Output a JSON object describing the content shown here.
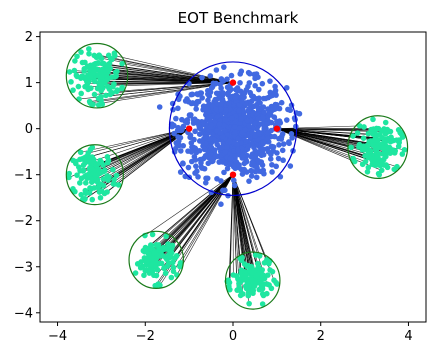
{
  "chart_data": {
    "type": "scatter",
    "title": "EOT Benchmark",
    "xlabel": "",
    "ylabel": "",
    "xlim": [
      -4.4,
      4.4
    ],
    "ylim": [
      -4.2,
      2.1
    ],
    "xticks": [
      -4,
      -2,
      0,
      2,
      4
    ],
    "yticks": [
      2,
      1,
      0,
      -1,
      -2,
      -3,
      -4
    ],
    "tick_labels_x": [
      "−4",
      "−2",
      "0",
      "2",
      "4"
    ],
    "tick_labels_y": [
      "2",
      "1",
      "0",
      "−1",
      "−2",
      "−3",
      "−4"
    ],
    "grid": false,
    "legend": "none",
    "colors": {
      "source_points": "#4169e1",
      "target_points": "#1ee6a0",
      "source_circle": "#0000cd",
      "target_circle": "#1a7a1a",
      "anchor_points": "#ff0000",
      "transport_lines": "#000000"
    },
    "source_distribution": {
      "center": [
        0,
        0
      ],
      "spread": 0.6,
      "circle_radius": 1.45,
      "count": 900
    },
    "anchor_points": [
      {
        "x": 0,
        "y": 1
      },
      {
        "x": -1,
        "y": 0
      },
      {
        "x": 1,
        "y": 0
      },
      {
        "x": 0,
        "y": -1
      }
    ],
    "target_clusters": [
      {
        "center": [
          -3.1,
          1.15
        ],
        "radius": 0.7,
        "count": 140,
        "anchor": 0
      },
      {
        "center": [
          -3.15,
          -1.0
        ],
        "radius": 0.65,
        "count": 110,
        "anchor": 1
      },
      {
        "center": [
          -1.75,
          -2.85
        ],
        "radius": 0.62,
        "count": 110,
        "anchor": 3
      },
      {
        "center": [
          0.45,
          -3.3
        ],
        "radius": 0.62,
        "count": 120,
        "anchor": 3
      },
      {
        "center": [
          3.3,
          -0.4
        ],
        "radius": 0.68,
        "count": 140,
        "anchor": 2
      }
    ]
  }
}
